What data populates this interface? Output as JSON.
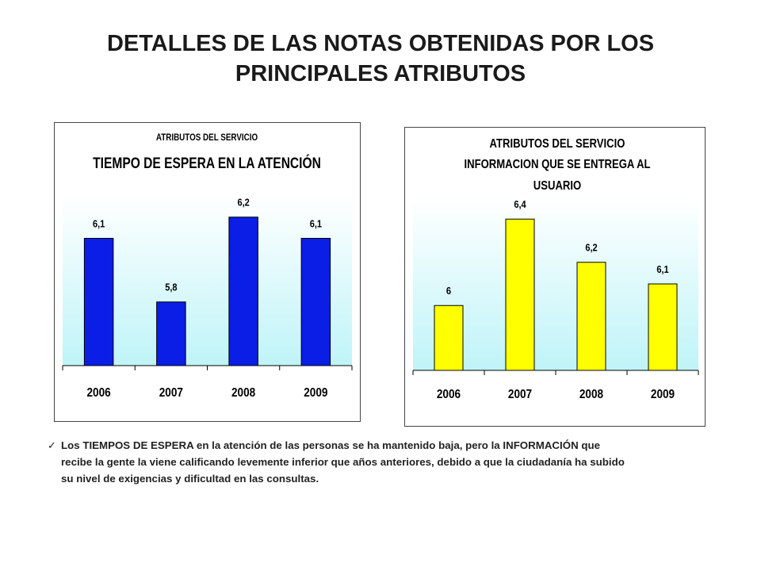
{
  "page": {
    "title_lines": [
      "DETALLES DE LAS NOTAS OBTENIDAS POR LOS",
      "PRINCIPALES ATRIBUTOS"
    ]
  },
  "chart_data": [
    {
      "type": "bar",
      "title_lines": [
        "ATRIBUTOS DEL SERVICIO",
        "TIEMPO DE ESPERA EN LA ATENCIÓN"
      ],
      "categories": [
        "2006",
        "2007",
        "2008",
        "2009"
      ],
      "values": [
        6.1,
        5.8,
        6.2,
        6.1
      ],
      "data_labels": [
        "6,1",
        "5,8",
        "6,2",
        "6,1"
      ],
      "ylim": [
        5.5,
        6.3
      ],
      "grid": false,
      "colors": {
        "bar": "#0a1ee6",
        "plot_bg_top": "#ffffff",
        "plot_bg_bottom": "#bff4f8"
      }
    },
    {
      "type": "bar",
      "title_lines": [
        "ATRIBUTOS DEL SERVICIO",
        "INFORMACION QUE SE ENTREGA AL",
        "USUARIO"
      ],
      "categories": [
        "2006",
        "2007",
        "2008",
        "2009"
      ],
      "values": [
        6,
        6.4,
        6.2,
        6.1
      ],
      "data_labels": [
        "6",
        "6,4",
        "6,2",
        "6,1"
      ],
      "ylim": [
        5.7,
        6.5
      ],
      "grid": false,
      "colors": {
        "bar": "#ffff00",
        "plot_bg_top": "#ffffff",
        "plot_bg_bottom": "#bff4f8"
      }
    }
  ],
  "note": {
    "bullet_icon": "checkmark-icon",
    "lines": [
      "Los TIEMPOS DE ESPERA en la atención de las personas se ha mantenido baja, pero la INFORMACIÓN que",
      "recibe la gente la viene calificando levemente inferior que años anteriores, debido a que la ciudadanía ha subido",
      "su nivel de exigencias y dificultad en las consultas."
    ]
  }
}
